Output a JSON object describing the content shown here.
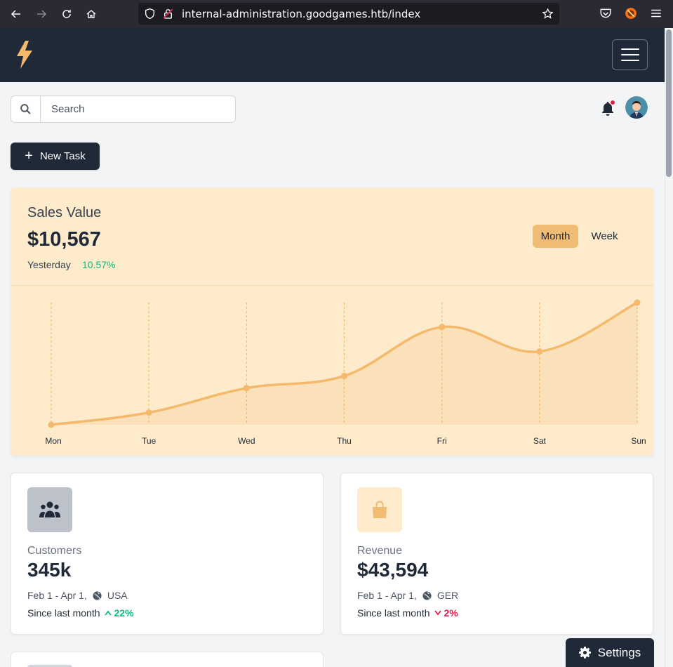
{
  "browser": {
    "url": "internal-administration.goodgames.htb/index"
  },
  "search": {
    "placeholder": "Search"
  },
  "actions": {
    "new_task_label": "New Task"
  },
  "sales": {
    "title": "Sales Value",
    "value": "$10,567",
    "subtitle": "Yesterday",
    "change": "10.57%",
    "period_buttons": {
      "month": "Month",
      "week": "Week"
    },
    "selected_period": "Month"
  },
  "chart_data": {
    "type": "area",
    "categories": [
      "Mon",
      "Tue",
      "Wed",
      "Thu",
      "Fri",
      "Sat",
      "Sun"
    ],
    "series": [
      {
        "values": [
          0,
          10,
          30,
          40,
          80,
          60,
          100
        ]
      }
    ],
    "ylim": [
      0,
      100
    ],
    "grid": "vertical-dashed",
    "color": "#f5b96b"
  },
  "stats": {
    "customers": {
      "label": "Customers",
      "value": "345k",
      "range": "Feb 1 - Apr 1,",
      "region": "USA",
      "since": "Since last month",
      "delta": "22%",
      "direction": "up",
      "icon": "users-icon"
    },
    "revenue": {
      "label": "Revenue",
      "value": "$43,594",
      "range": "Feb 1 - Apr 1,",
      "region": "GER",
      "since": "Since last month",
      "delta": "2%",
      "direction": "down",
      "icon": "shopping-bag-icon"
    }
  },
  "settings": {
    "label": "Settings"
  },
  "colors": {
    "header": "#1f2937",
    "accent": "#f0bc74",
    "card_bg": "#fdebcc",
    "up": "#10b981",
    "down": "#e11d48"
  }
}
